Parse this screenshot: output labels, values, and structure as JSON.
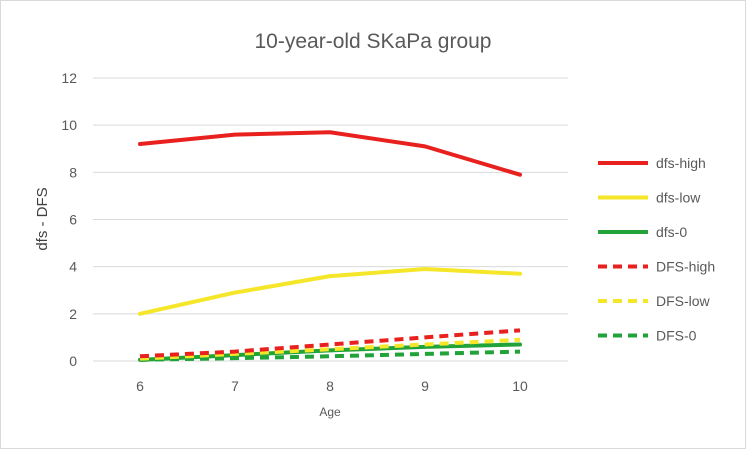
{
  "chart_data": {
    "type": "line",
    "title": "10-year-old SKaPa group",
    "xlabel": "Age",
    "ylabel": "dfs - DFS",
    "x": [
      6,
      7,
      8,
      9,
      10
    ],
    "x_tick_labels": [
      "6",
      "7",
      "8",
      "9",
      "10"
    ],
    "y_tick_labels": [
      "0",
      "2",
      "4",
      "6",
      "8",
      "10",
      "12"
    ],
    "ylim": [
      0,
      12
    ],
    "grid": "horizontal",
    "legend_position": "right",
    "series": [
      {
        "name": "dfs-high",
        "color": "#e8211f",
        "dash": "solid",
        "values": [
          9.2,
          9.6,
          9.7,
          9.1,
          7.9
        ]
      },
      {
        "name": "dfs-low",
        "color": "#f5e62a",
        "dash": "solid",
        "values": [
          2.0,
          2.9,
          3.6,
          3.9,
          3.7
        ]
      },
      {
        "name": "dfs-0",
        "color": "#22a33a",
        "dash": "solid",
        "values": [
          0.05,
          0.25,
          0.45,
          0.6,
          0.7
        ]
      },
      {
        "name": "DFS-high",
        "color": "#e8211f",
        "dash": "dashed",
        "values": [
          0.2,
          0.4,
          0.7,
          1.0,
          1.3
        ]
      },
      {
        "name": "DFS-low",
        "color": "#f5e62a",
        "dash": "dashed",
        "values": [
          0.1,
          0.3,
          0.5,
          0.7,
          0.9
        ]
      },
      {
        "name": "DFS-0",
        "color": "#22a33a",
        "dash": "dashed",
        "values": [
          0.05,
          0.12,
          0.2,
          0.3,
          0.4
        ]
      }
    ]
  }
}
